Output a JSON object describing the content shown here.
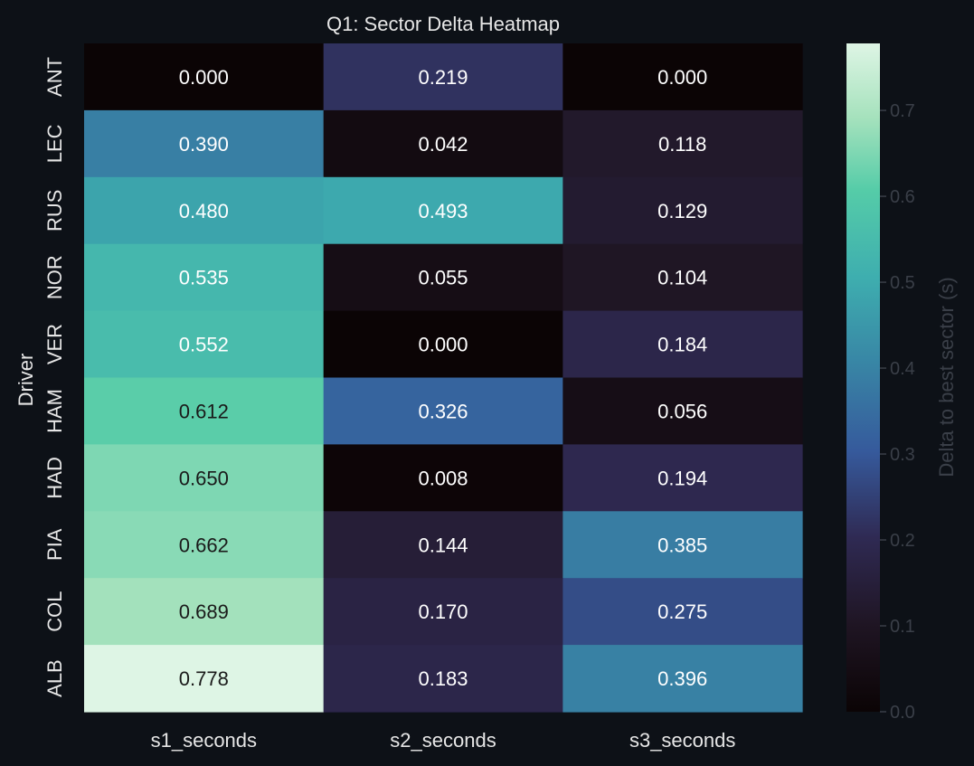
{
  "chart_data": {
    "type": "heatmap",
    "title": "Q1: Sector Delta Heatmap",
    "ylabel": "Driver",
    "xlabel": "",
    "columns": [
      "s1_seconds",
      "s2_seconds",
      "s3_seconds"
    ],
    "rows": [
      "ANT",
      "LEC",
      "RUS",
      "NOR",
      "VER",
      "HAM",
      "HAD",
      "PIA",
      "COL",
      "ALB"
    ],
    "value_labels": [
      [
        "0.000",
        "0.219",
        "0.000"
      ],
      [
        "0.390",
        "0.042",
        "0.118"
      ],
      [
        "0.480",
        "0.493",
        "0.129"
      ],
      [
        "0.535",
        "0.055",
        "0.104"
      ],
      [
        "0.552",
        "0.000",
        "0.184"
      ],
      [
        "0.612",
        "0.326",
        "0.056"
      ],
      [
        "0.650",
        "0.008",
        "0.194"
      ],
      [
        "0.662",
        "0.144",
        "0.385"
      ],
      [
        "0.689",
        "0.170",
        "0.275"
      ],
      [
        "0.778",
        "0.183",
        "0.396"
      ]
    ],
    "colorbar": {
      "label": "Delta to best sector (s)",
      "range": [
        0.0,
        0.778
      ],
      "ticks": [
        "0.0",
        "0.1",
        "0.2",
        "0.3",
        "0.4",
        "0.5",
        "0.6",
        "0.7"
      ],
      "colormap": "mako"
    },
    "grid": false
  },
  "colors": {
    "background": "#0d1117",
    "text": "#e6e6e6",
    "muted_text": "#3a3f48",
    "label_dark": "#1a1a1a",
    "label_light": "#ffffff"
  }
}
